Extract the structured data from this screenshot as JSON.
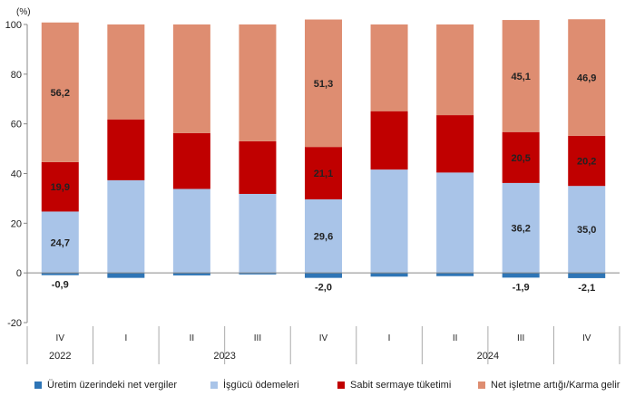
{
  "chart_data": {
    "type": "bar",
    "stacked": true,
    "unit_label": "(%)",
    "ylim": [
      -20,
      100
    ],
    "yticks": [
      -20,
      0,
      20,
      40,
      60,
      80,
      100
    ],
    "categories": [
      "IV",
      "I",
      "II",
      "III",
      "IV",
      "I",
      "II",
      "III",
      "IV"
    ],
    "years": [
      {
        "label": "2022",
        "span": [
          0,
          0
        ]
      },
      {
        "label": "2023",
        "span": [
          1,
          4
        ]
      },
      {
        "label": "2024",
        "span": [
          5,
          8
        ]
      }
    ],
    "series": [
      {
        "name": "Üretim üzerindeki net vergiler",
        "color": "#2e75b6",
        "values": [
          -0.9,
          -2.0,
          -1.0,
          -0.6,
          -2.0,
          -1.5,
          -1.3,
          -1.9,
          -2.1
        ],
        "labels": [
          "-0,9",
          "",
          "",
          "",
          "-2,0",
          "",
          "",
          "-1,9",
          "-2,1"
        ]
      },
      {
        "name": "İşgücü ödemeleri",
        "color": "#a9c4e8",
        "values": [
          24.7,
          37.3,
          33.8,
          31.8,
          29.6,
          41.6,
          40.4,
          36.2,
          35.0
        ],
        "labels": [
          "24,7",
          "",
          "",
          "",
          "29,6",
          "",
          "",
          "36,2",
          "35,0"
        ]
      },
      {
        "name": "Sabit sermaye tüketimi",
        "color": "#c00000",
        "values": [
          19.9,
          24.5,
          22.5,
          21.2,
          21.1,
          23.5,
          23.1,
          20.5,
          20.2
        ],
        "labels": [
          "19,9",
          "",
          "",
          "",
          "21,1",
          "",
          "",
          "20,5",
          "20,2"
        ]
      },
      {
        "name": "Net işletme artığı/Karma gelir",
        "color": "#de8d71",
        "values": [
          56.2,
          38.2,
          43.7,
          47.0,
          51.3,
          34.9,
          36.5,
          45.1,
          46.9
        ],
        "labels": [
          "56,2",
          "",
          "",
          "",
          "51,3",
          "",
          "",
          "45,1",
          "46,9"
        ]
      }
    ]
  }
}
